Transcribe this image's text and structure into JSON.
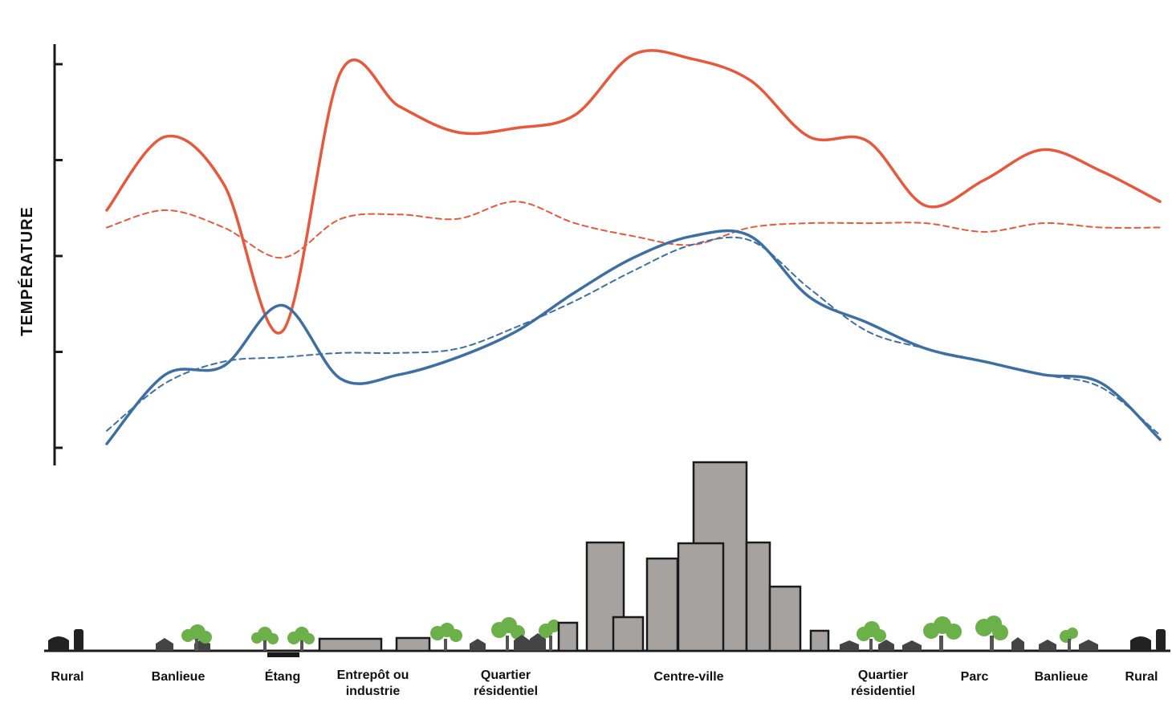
{
  "chart_data": {
    "type": "line",
    "ylabel": "TEMPÉRATURE",
    "xlabel": "",
    "x_ticks": [
      "Rural",
      "Banlieue",
      "Étang",
      "Entrepôt ou industrie",
      "Quartier résidentiel",
      "Centre-ville",
      "Quartier résidentiel",
      "Parc",
      "Banlieue",
      "Rural"
    ],
    "y_tick_count": 5,
    "x": [
      0,
      0.5,
      1,
      1.5,
      2,
      2.5,
      3,
      3.5,
      4,
      4.5,
      5,
      5.5,
      6,
      6.5,
      7,
      7.5,
      8,
      8.5,
      9
    ],
    "series": [
      {
        "color": "#e8583c",
        "style": "solid",
        "values": [
          5.4,
          7.1,
          6.0,
          2.6,
          8.6,
          7.8,
          7.2,
          7.3,
          7.6,
          9.0,
          8.9,
          8.4,
          7.1,
          7.0,
          5.5,
          6.1,
          6.8,
          6.3,
          5.6
        ]
      },
      {
        "color": "#e8583c",
        "style": "dashed",
        "values": [
          5.0,
          5.4,
          5.0,
          4.3,
          5.2,
          5.3,
          5.2,
          5.6,
          5.1,
          4.8,
          4.6,
          5.0,
          5.1,
          5.1,
          5.1,
          4.9,
          5.1,
          5.0,
          5.0
        ]
      },
      {
        "color": "#3d6fa3",
        "style": "solid",
        "values": [
          0.0,
          1.6,
          1.8,
          3.2,
          1.5,
          1.6,
          2.0,
          2.6,
          3.5,
          4.3,
          4.8,
          4.8,
          3.4,
          2.8,
          2.2,
          1.9,
          1.6,
          1.4,
          0.1
        ]
      },
      {
        "color": "#3d6fa3",
        "style": "dashed",
        "values": [
          0.3,
          1.4,
          1.9,
          2.0,
          2.1,
          2.1,
          2.2,
          2.7,
          3.3,
          4.0,
          4.6,
          4.7,
          3.6,
          2.6,
          2.2,
          1.9,
          1.6,
          1.3,
          0.2
        ]
      }
    ]
  }
}
